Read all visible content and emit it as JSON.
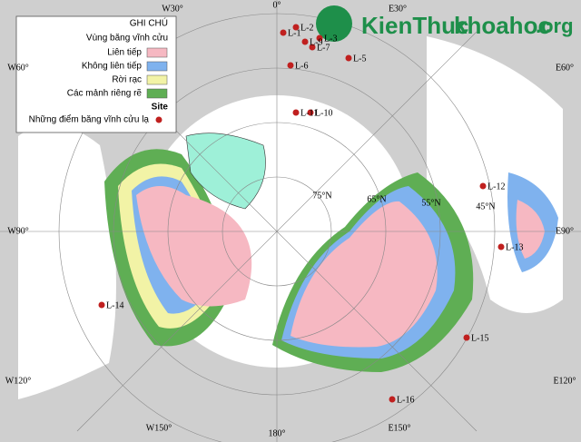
{
  "watermark": {
    "brand": "KienThuc",
    "site": "khoahoc",
    "domain": ".org"
  },
  "legend": {
    "title": "GHI CHÚ",
    "section": "Vùng băng vĩnh cửu",
    "items": [
      {
        "label": "Liên tiếp",
        "color": "#f6b8c2"
      },
      {
        "label": "Không liên tiếp",
        "color": "#7fb2ee"
      },
      {
        "label": "Rời rạc",
        "color": "#f2f3a6"
      },
      {
        "label": "Các mảnh riêng rẽ",
        "color": "#5fae54"
      }
    ],
    "site_title": "Site",
    "site_item": "Những điểm băng vĩnh cửu lạ",
    "site_color": "#c0201f"
  },
  "sites": [
    "L-1",
    "L-2",
    "L-3",
    "L-5",
    "L-6",
    "L-7",
    "L-9",
    "L-10",
    "L-11",
    "L-12",
    "L-13",
    "L-14",
    "L-15",
    "L-16"
  ],
  "longitudes": [
    "W30°",
    "0°",
    "E30°",
    "E60°",
    "E90°",
    "E120°",
    "E150°",
    "180°",
    "W150°",
    "W120°",
    "W90°",
    "W60°"
  ],
  "latitudes": [
    "45°N",
    "55°N",
    "65°N",
    "75°N"
  ]
}
